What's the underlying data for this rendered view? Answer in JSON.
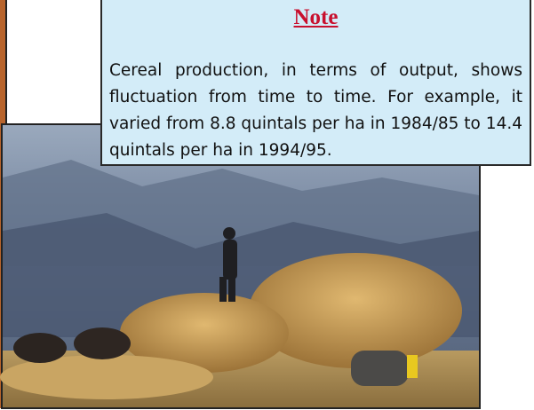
{
  "note": {
    "title": "Note",
    "body": "Cereal production, in terms of output, shows fluctuation from time to time. For example, it varied from 8.8 quintals per ha in 1984/85 to 14.4 quintals per ha in 1994/95."
  }
}
